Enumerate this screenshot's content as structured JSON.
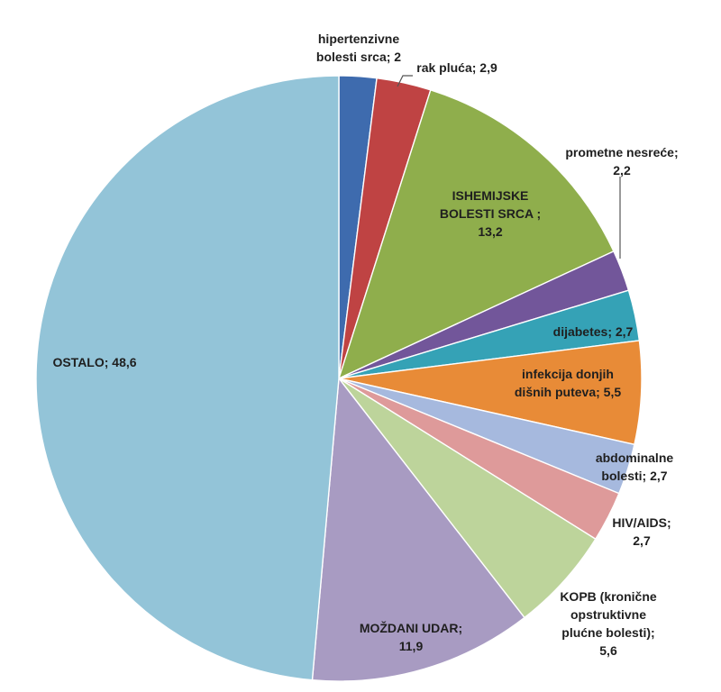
{
  "chart_data": {
    "type": "pie",
    "start_angle_deg": 0,
    "direction": "clockwise",
    "slices": [
      {
        "label": "hipertenzivne bolesti srca",
        "value": 2,
        "color": "#3E6BAE",
        "label_text": [
          "hipertenzivne",
          "bolesti srca; 2"
        ]
      },
      {
        "label": "rak pluća",
        "value": 2.9,
        "color": "#BF4343",
        "label_text": [
          "rak pluća; 2,9"
        ]
      },
      {
        "label": "ISHEMIJSKE BOLESTI SRCA",
        "value": 13.2,
        "color": "#8FAE4C",
        "label_text": [
          "ISHEMIJSKE",
          "BOLESTI SRCA ;",
          "13,2"
        ]
      },
      {
        "label": "prometne nesreće",
        "value": 2.2,
        "color": "#72569A",
        "label_text": [
          "prometne nesreće;",
          "2,2"
        ]
      },
      {
        "label": "dijabetes",
        "value": 2.7,
        "color": "#35A2B6",
        "label_text": [
          "dijabetes; 2,7"
        ]
      },
      {
        "label": "infekcija donjih dišnih puteva",
        "value": 5.5,
        "color": "#E88B37",
        "label_text": [
          "infekcija donjih",
          "dišnih puteva; 5,5"
        ]
      },
      {
        "label": "abdominalne bolesti",
        "value": 2.7,
        "color": "#A6B9DE",
        "label_text": [
          "abdominalne",
          "bolesti; 2,7"
        ]
      },
      {
        "label": "HIV/AIDS",
        "value": 2.7,
        "color": "#DE9A9A",
        "label_text": [
          "HIV/AIDS;",
          "2,7"
        ]
      },
      {
        "label": "KOPB (kronične opstruktivne plućne bolesti)",
        "value": 5.6,
        "color": "#BDD49B",
        "label_text": [
          "KOPB (kronične",
          "opstruktivne",
          "plućne bolesti);",
          "5,6"
        ]
      },
      {
        "label": "MOŽDANI UDAR",
        "value": 11.9,
        "color": "#A89BC2",
        "label_text": [
          "MOŽDANI UDAR;",
          "11,9"
        ]
      },
      {
        "label": "OSTALO",
        "value": 48.6,
        "color": "#93C4D8",
        "label_text": [
          "OSTALO; 48,6"
        ]
      }
    ]
  }
}
